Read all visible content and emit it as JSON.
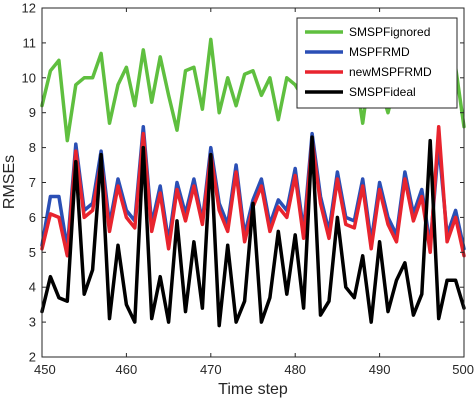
{
  "chart_data": {
    "type": "line",
    "xlabel": "Time step",
    "ylabel": "RMSEs",
    "xlim": [
      450,
      500
    ],
    "ylim": [
      2,
      12
    ],
    "xticks": [
      450,
      460,
      470,
      480,
      490,
      500
    ],
    "yticks": [
      2,
      3,
      4,
      5,
      6,
      7,
      8,
      9,
      10,
      11,
      12
    ],
    "grid": false,
    "legend_position": "top-right",
    "x": [
      450,
      451,
      452,
      453,
      454,
      455,
      456,
      457,
      458,
      459,
      460,
      461,
      462,
      463,
      464,
      465,
      466,
      467,
      468,
      469,
      470,
      471,
      472,
      473,
      474,
      475,
      476,
      477,
      478,
      479,
      480,
      481,
      482,
      483,
      484,
      485,
      486,
      487,
      488,
      489,
      490,
      491,
      492,
      493,
      494,
      495,
      496,
      497,
      498,
      499,
      500
    ],
    "series": [
      {
        "name": "SMSPFignored",
        "color": "#5fbf3f",
        "values": [
          9.2,
          10.2,
          10.5,
          8.2,
          9.8,
          10.0,
          10.0,
          10.7,
          8.7,
          9.8,
          10.3,
          9.2,
          10.8,
          9.3,
          10.6,
          9.5,
          8.5,
          10.2,
          10.3,
          9.1,
          11.1,
          9.0,
          10.0,
          9.2,
          10.1,
          10.2,
          9.5,
          10.0,
          8.8,
          10.0,
          9.8,
          9.4,
          10.5,
          10.4,
          9.2,
          10.3,
          10.3,
          10.3,
          8.7,
          10.5,
          9.8,
          9.0,
          10.0,
          10.3,
          9.5,
          10.2,
          10.7,
          9.4,
          10.2,
          10.3,
          8.6
        ]
      },
      {
        "name": "MSPFRMD",
        "color": "#2b4fb5",
        "values": [
          5.2,
          6.6,
          6.6,
          5.1,
          8.1,
          6.2,
          6.4,
          7.9,
          5.8,
          7.1,
          6.2,
          5.9,
          8.6,
          5.8,
          6.9,
          5.3,
          7.0,
          6.1,
          7.1,
          5.9,
          8.0,
          6.4,
          5.8,
          7.5,
          5.5,
          6.5,
          7.1,
          5.8,
          6.5,
          6.2,
          7.4,
          5.6,
          8.4,
          6.6,
          5.6,
          7.3,
          6.0,
          5.9,
          7.1,
          5.3,
          7.0,
          6.0,
          5.5,
          7.3,
          6.1,
          6.8,
          5.2,
          8.1,
          5.5,
          6.2,
          5.1
        ]
      },
      {
        "name": "newMSPFRMD",
        "color": "#e8242e",
        "values": [
          5.1,
          6.1,
          6.0,
          4.9,
          7.9,
          6.0,
          6.2,
          7.6,
          5.6,
          6.9,
          6.0,
          5.7,
          8.4,
          5.6,
          6.7,
          5.1,
          6.8,
          5.9,
          6.9,
          5.8,
          7.8,
          6.2,
          5.6,
          7.3,
          5.3,
          6.3,
          6.9,
          5.6,
          6.3,
          6.0,
          7.2,
          5.4,
          8.2,
          6.4,
          5.4,
          7.1,
          5.8,
          5.7,
          6.9,
          5.1,
          6.8,
          5.8,
          5.3,
          7.1,
          5.9,
          6.6,
          5.0,
          8.6,
          5.3,
          6.0,
          4.9
        ]
      },
      {
        "name": "SMSPFideal",
        "color": "#000000",
        "values": [
          3.3,
          4.3,
          3.7,
          3.6,
          7.6,
          3.8,
          4.5,
          7.8,
          3.1,
          5.2,
          3.5,
          3.0,
          8.0,
          3.1,
          4.3,
          3.0,
          5.9,
          3.3,
          5.3,
          3.4,
          7.8,
          2.9,
          5.2,
          3.0,
          3.6,
          6.4,
          3.0,
          3.7,
          5.6,
          3.8,
          5.5,
          3.4,
          8.3,
          3.2,
          3.6,
          6.0,
          4.0,
          3.7,
          4.9,
          3.0,
          5.3,
          3.3,
          4.2,
          4.7,
          3.2,
          3.8,
          8.2,
          3.1,
          4.2,
          4.2,
          3.4
        ]
      }
    ]
  }
}
